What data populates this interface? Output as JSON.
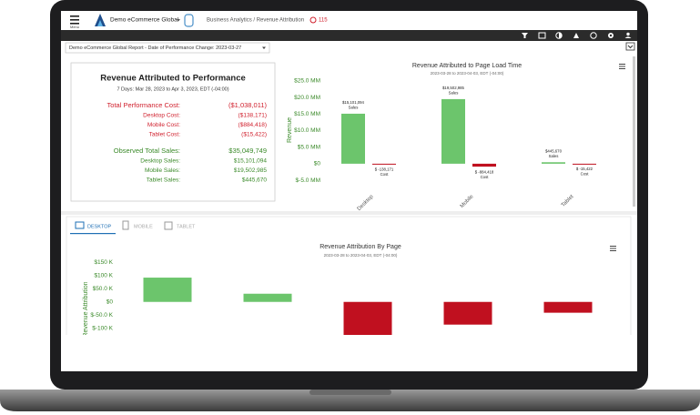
{
  "header": {
    "menu": "Menu",
    "account": "Demo eCommerce Global",
    "breadcrumb": "Business Analytics / Revenue Attribution",
    "alerts": "115"
  },
  "report_selector": "Demo eCommerce Global Report - Date of Performance Change: 2023-03-27",
  "summary": {
    "title": "Revenue Attributed to Performance",
    "subtitle": "7 Days: Mar 28, 2023 to Apr 3, 2023, EDT (-04:00)",
    "performance_cost": [
      {
        "label": "Total Performance Cost:",
        "value": "($1,038,011)"
      },
      {
        "label": "Desktop Cost:",
        "value": "($138,171)"
      },
      {
        "label": "Mobile Cost:",
        "value": "($884,418)"
      },
      {
        "label": "Tablet Cost:",
        "value": "($15,422)"
      }
    ],
    "observed_sales": [
      {
        "label": "Observed Total Sales:",
        "value": "$35,049,749"
      },
      {
        "label": "Desktop Sales:",
        "value": "$15,101,094"
      },
      {
        "label": "Mobile Sales:",
        "value": "$19,502,985"
      },
      {
        "label": "Tablet Sales:",
        "value": "$445,670"
      }
    ]
  },
  "tabs": [
    "DESKTOP",
    "MOBILE",
    "TABLET"
  ],
  "chart_data": [
    {
      "type": "bar",
      "title": "Revenue Attributed to Page Load Time",
      "subtitle": "2023-03-28 to 2023-04-03, EDT (-04:00)",
      "y_label": "Revenue",
      "categories": [
        "Desktop",
        "Mobile",
        "Tablet"
      ],
      "series": [
        {
          "name": "Sales",
          "color": "#6cc56c",
          "values": [
            15101094,
            19502985,
            445670
          ],
          "value_labels": [
            "$15,101,094",
            "$19,502,985",
            "$445,670"
          ]
        },
        {
          "name": "Cost",
          "color": "#c0101f",
          "values": [
            -138171,
            -884418,
            -15422
          ],
          "value_labels": [
            "$ -138,171",
            "$ -884,418",
            "$ -15,422"
          ]
        }
      ],
      "ylim": [
        -5800000,
        25800000
      ],
      "yticks": [
        {
          "value": 25000000,
          "label": "$25.0 MM"
        },
        {
          "value": 20000000,
          "label": "$20.0 MM"
        },
        {
          "value": 15000000,
          "label": "$15.0 MM"
        },
        {
          "value": 10000000,
          "label": "$10.0 MM"
        },
        {
          "value": 5000000,
          "label": "$5.0 MM"
        },
        {
          "value": 0,
          "label": "$0"
        },
        {
          "value": -5000000,
          "label": "$-5.0 MM"
        }
      ],
      "grid": false
    },
    {
      "type": "waterfall",
      "title": "Revenue Attribution By Page",
      "subtitle": "2023-03-28 to 2023-04-03, EDT (-04:00)",
      "y_label": "Revenue Attribution",
      "categories": [
        null,
        null,
        null,
        null,
        null
      ],
      "values": [
        92000,
        31000,
        -130000,
        -86000,
        -41000
      ],
      "positive_color": "#6cc56c",
      "negative_color": "#c0101f",
      "ylim": [
        -125000,
        168000
      ],
      "yticks": [
        {
          "value": 150000,
          "label": "$150 K"
        },
        {
          "value": 100000,
          "label": "$100 K"
        },
        {
          "value": 50000,
          "label": "$50.0 K"
        },
        {
          "value": 0,
          "label": "$0"
        },
        {
          "value": -50000,
          "label": "$-50.0 K"
        },
        {
          "value": -100000,
          "label": "$-100 K"
        }
      ],
      "grid": false
    }
  ]
}
